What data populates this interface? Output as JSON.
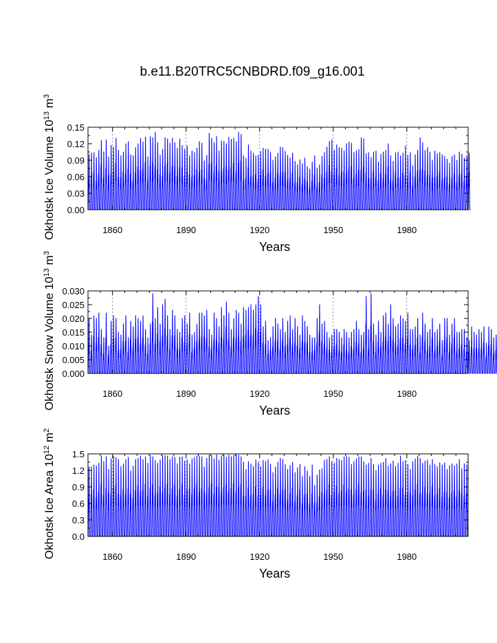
{
  "figure": {
    "title": "b.e11.B20TRC5CNBDRD.f09_g16.001"
  },
  "chart_data": [
    {
      "type": "line",
      "title": "",
      "ylabel": "Okhotsk Ice Volume 10",
      "ylabel_exp": "13",
      "ylabel_unit": "m",
      "ylabel_unit_exp": "3",
      "xlabel": "Years",
      "xlim": [
        1850,
        2005
      ],
      "ylim": [
        0,
        0.15
      ],
      "xticks": [
        "1860",
        "1890",
        "1920",
        "1950",
        "1980"
      ],
      "yticks": [
        "0.00",
        "0.03",
        "0.06",
        "0.09",
        "0.12",
        "0.15"
      ],
      "grid": "vertical dashed lines at labeled x ticks",
      "color": "#0000ff",
      "series": [
        {
          "x_start": 1850,
          "annual_max": [
            0.1,
            0.103,
            0.104,
            0.095,
            0.108,
            0.126,
            0.105,
            0.127,
            0.096,
            0.117,
            0.114,
            0.13,
            0.108,
            0.098,
            0.105,
            0.12,
            0.124,
            0.1,
            0.098,
            0.113,
            0.12,
            0.13,
            0.123,
            0.132,
            0.096,
            0.133,
            0.131,
            0.141,
            0.122,
            0.099,
            0.11,
            0.131,
            0.129,
            0.121,
            0.13,
            0.122,
            0.112,
            0.129,
            0.117,
            0.11,
            0.116,
            0.098,
            0.107,
            0.104,
            0.112,
            0.124,
            0.121,
            0.089,
            0.099,
            0.139,
            0.13,
            0.122,
            0.133,
            0.107,
            0.125,
            0.124,
            0.12,
            0.132,
            0.128,
            0.13,
            0.124,
            0.141,
            0.137,
            0.098,
            0.094,
            0.118,
            0.107,
            0.103,
            0.098,
            0.099,
            0.106,
            0.112,
            0.11,
            0.11,
            0.104,
            0.09,
            0.096,
            0.103,
            0.114,
            0.113,
            0.106,
            0.099,
            0.094,
            0.103,
            0.088,
            0.082,
            0.091,
            0.084,
            0.094,
            0.078,
            0.074,
            0.087,
            0.098,
            0.076,
            0.082,
            0.097,
            0.104,
            0.114,
            0.124,
            0.127,
            0.108,
            0.118,
            0.113,
            0.112,
            0.107,
            0.12,
            0.123,
            0.121,
            0.104,
            0.107,
            0.11,
            0.131,
            0.129,
            0.102,
            0.104,
            0.095,
            0.105,
            0.107,
            0.087,
            0.101,
            0.105,
            0.108,
            0.12,
            0.098,
            0.088,
            0.103,
            0.105,
            0.098,
            0.103,
            0.116,
            0.099,
            0.104,
            0.08,
            0.1,
            0.108,
            0.131,
            0.122,
            0.108,
            0.113,
            0.105,
            0.09,
            0.107,
            0.102,
            0.104,
            0.1,
            0.097,
            0.092,
            0.085,
            0.097,
            0.1,
            0.09,
            0.105,
            0.101,
            0.094,
            0.098,
            0.103
          ],
          "annual_min": 0.0
        }
      ]
    },
    {
      "type": "line",
      "title": "",
      "ylabel": "Okhotsk Snow Volume 10",
      "ylabel_exp": "13",
      "ylabel_unit": "m",
      "ylabel_unit_exp": "3",
      "xlabel": "Years",
      "xlim": [
        1850,
        2005
      ],
      "ylim": [
        0,
        0.03
      ],
      "xticks": [
        "1860",
        "1890",
        "1920",
        "1950",
        "1980"
      ],
      "yticks": [
        "0.000",
        "0.005",
        "0.010",
        "0.015",
        "0.020",
        "0.025",
        "0.030"
      ],
      "grid": "vertical dashed lines at labeled x ticks",
      "color": "#0000ff",
      "series": [
        {
          "x_start": 1850,
          "annual_max": [
            0.02,
            0.014,
            0.021,
            0.02,
            0.022,
            0.016,
            0.013,
            0.022,
            0.01,
            0.019,
            0.021,
            0.02,
            0.015,
            0.014,
            0.018,
            0.021,
            0.013,
            0.019,
            0.017,
            0.021,
            0.02,
            0.019,
            0.021,
            0.016,
            0.013,
            0.018,
            0.029,
            0.02,
            0.024,
            0.018,
            0.025,
            0.027,
            0.021,
            0.016,
            0.023,
            0.021,
            0.016,
            0.015,
            0.02,
            0.021,
            0.018,
            0.022,
            0.014,
            0.015,
            0.018,
            0.022,
            0.022,
            0.021,
            0.023,
            0.016,
            0.014,
            0.022,
            0.02,
            0.017,
            0.024,
            0.021,
            0.026,
            0.022,
            0.016,
            0.02,
            0.023,
            0.022,
            0.018,
            0.024,
            0.023,
            0.024,
            0.025,
            0.023,
            0.025,
            0.028,
            0.025,
            0.017,
            0.019,
            0.012,
            0.013,
            0.017,
            0.02,
            0.018,
            0.016,
            0.02,
            0.015,
            0.019,
            0.021,
            0.016,
            0.02,
            0.017,
            0.014,
            0.021,
            0.019,
            0.017,
            0.014,
            0.013,
            0.013,
            0.02,
            0.025,
            0.018,
            0.019,
            0.015,
            0.013,
            0.014,
            0.016,
            0.016,
            0.015,
            0.013,
            0.016,
            0.015,
            0.013,
            0.015,
            0.016,
            0.019,
            0.016,
            0.014,
            0.015,
            0.028,
            0.016,
            0.029,
            0.018,
            0.014,
            0.019,
            0.015,
            0.021,
            0.022,
            0.018,
            0.025,
            0.02,
            0.017,
            0.018,
            0.021,
            0.02,
            0.019,
            0.022,
            0.016,
            0.016,
            0.017,
            0.02,
            0.014,
            0.022,
            0.018,
            0.015,
            0.016,
            0.02,
            0.015,
            0.016,
            0.018,
            0.012,
            0.02,
            0.02,
            0.014,
            0.018,
            0.02,
            0.015,
            0.015,
            0.016,
            0.016,
            0.013,
            0.012,
            0.017,
            0.015,
            0.014,
            0.016,
            0.015,
            0.017,
            0.011,
            0.017,
            0.016,
            0.013,
            0.014,
            0.02
          ],
          "annual_min": 0.0
        }
      ]
    },
    {
      "type": "line",
      "title": "",
      "ylabel": "Okhotsk Ice Area 10",
      "ylabel_exp": "12",
      "ylabel_unit": "m",
      "ylabel_unit_exp": "2",
      "xlabel": "Years",
      "xlim": [
        1850,
        2005
      ],
      "ylim": [
        0,
        1.5
      ],
      "xticks": [
        "1860",
        "1890",
        "1920",
        "1950",
        "1980"
      ],
      "yticks": [
        "0.0",
        "0.3",
        "0.6",
        "0.9",
        "1.2",
        "1.5"
      ],
      "grid": "vertical dashed lines at labeled x ticks",
      "color": "#0000ff",
      "series": [
        {
          "x_start": 1850,
          "annual_max": [
            1.26,
            1.27,
            1.3,
            1.28,
            1.33,
            1.46,
            1.36,
            1.45,
            1.22,
            1.41,
            1.46,
            1.43,
            1.4,
            1.27,
            1.32,
            1.4,
            1.44,
            1.19,
            1.28,
            1.4,
            1.42,
            1.46,
            1.4,
            1.45,
            1.33,
            1.47,
            1.45,
            1.38,
            1.33,
            1.39,
            1.47,
            1.47,
            1.46,
            1.4,
            1.45,
            1.44,
            1.32,
            1.44,
            1.45,
            1.37,
            1.39,
            1.32,
            1.41,
            1.44,
            1.46,
            1.46,
            1.45,
            1.26,
            1.42,
            1.48,
            1.47,
            1.41,
            1.48,
            1.39,
            1.46,
            1.48,
            1.44,
            1.48,
            1.45,
            1.47,
            1.49,
            1.48,
            1.45,
            1.35,
            1.22,
            1.36,
            1.32,
            1.27,
            1.39,
            1.35,
            1.27,
            1.38,
            1.36,
            1.39,
            1.31,
            1.16,
            1.26,
            1.35,
            1.42,
            1.4,
            1.31,
            1.22,
            1.29,
            1.35,
            1.16,
            1.25,
            1.31,
            1.09,
            1.27,
            1.19,
            1.09,
            1.3,
            0.93,
            1.12,
            1.21,
            1.23,
            1.38,
            1.4,
            1.45,
            1.36,
            1.33,
            1.42,
            1.4,
            1.38,
            1.45,
            1.46,
            1.44,
            1.31,
            1.36,
            1.41,
            1.45,
            1.45,
            1.36,
            1.3,
            1.33,
            1.42,
            1.31,
            1.2,
            1.3,
            1.33,
            1.35,
            1.42,
            1.28,
            1.32,
            1.37,
            1.27,
            1.33,
            1.46,
            1.36,
            1.38,
            1.31,
            1.22,
            1.36,
            1.41,
            1.46,
            1.42,
            1.33,
            1.37,
            1.39,
            1.3,
            1.4,
            1.31,
            1.27,
            1.34,
            1.3,
            1.34,
            1.22,
            1.29,
            1.32,
            1.28,
            1.32,
            1.4,
            1.23,
            1.32,
            1.3
          ],
          "annual_min": 0.0
        }
      ]
    }
  ]
}
